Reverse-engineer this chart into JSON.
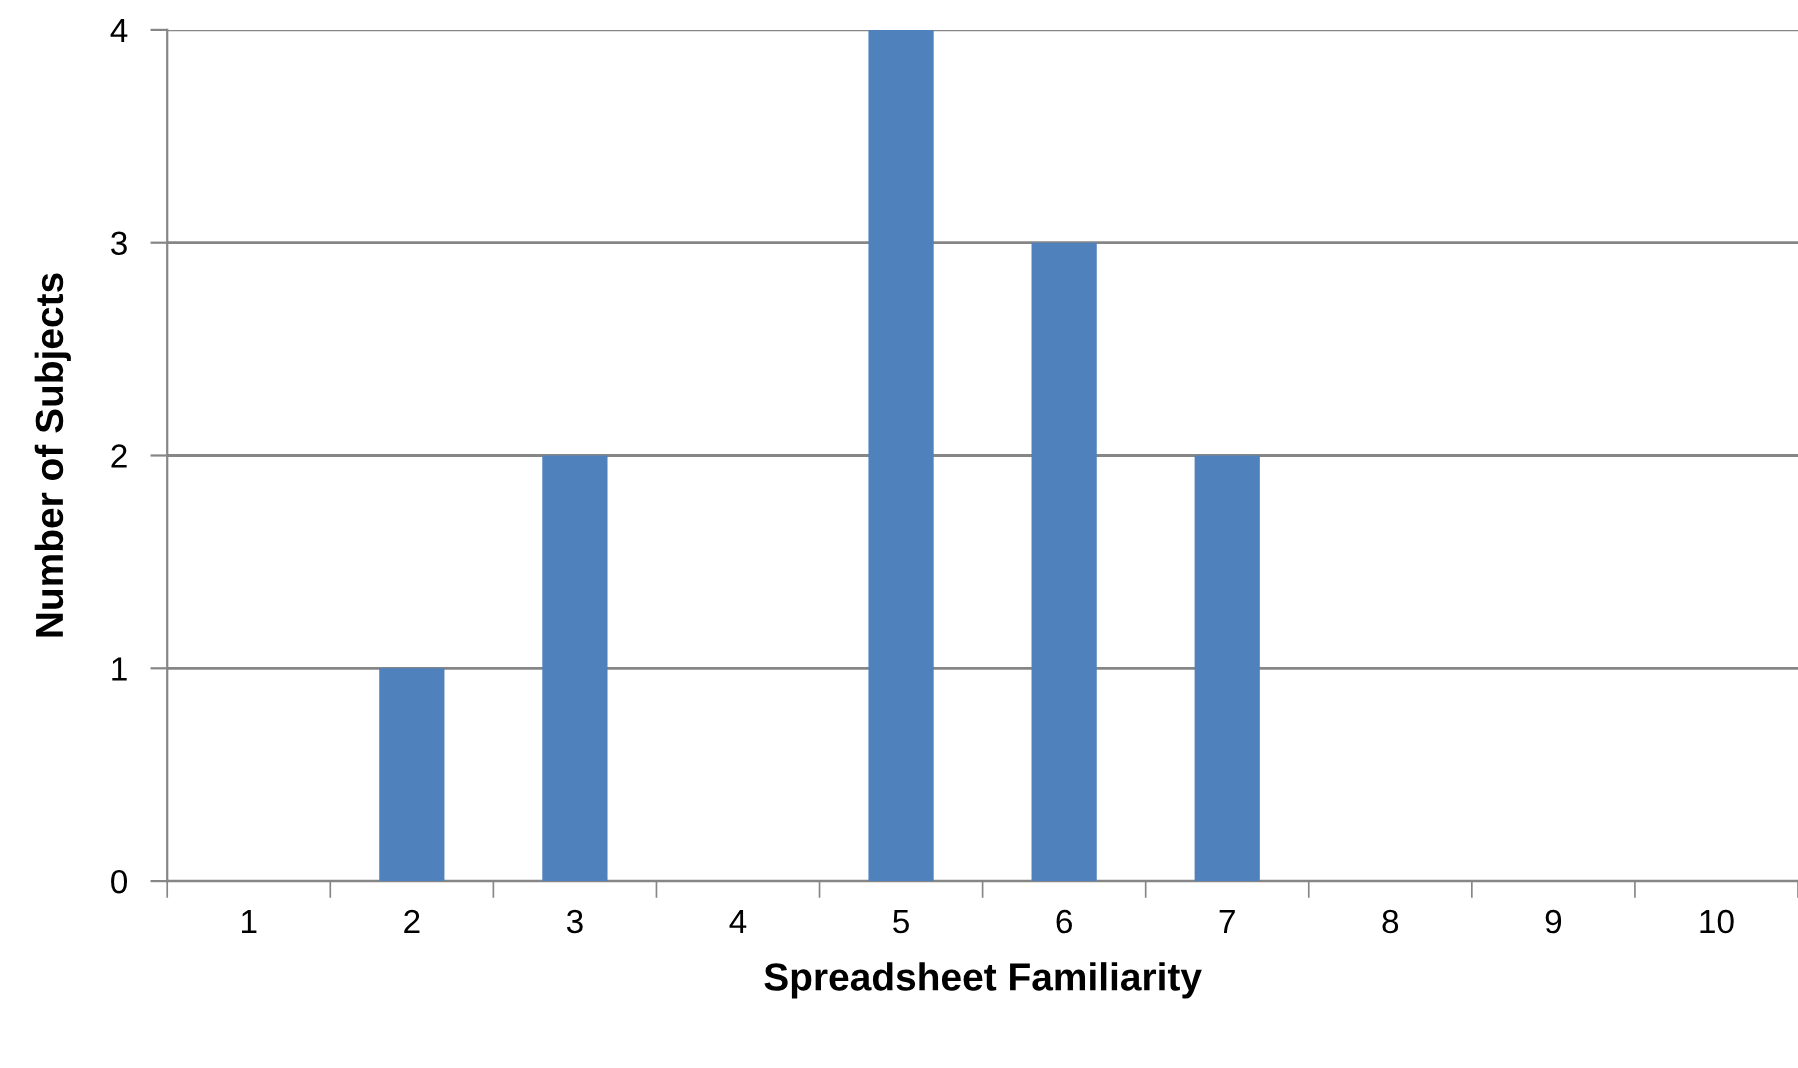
{
  "chart_data": {
    "type": "bar",
    "xlabel": "Spreadsheet Familiarity",
    "ylabel": "Number of Subjects",
    "categories": [
      "1",
      "2",
      "3",
      "4",
      "5",
      "6",
      "7",
      "8",
      "9",
      "10"
    ],
    "values": [
      0,
      1,
      2,
      0,
      4,
      3,
      2,
      0,
      0,
      0
    ],
    "color": "#4f81bd",
    "ylim": [
      0,
      4
    ],
    "yticks": [
      0,
      1,
      2,
      3,
      4
    ],
    "grid": "y",
    "legend": false
  }
}
